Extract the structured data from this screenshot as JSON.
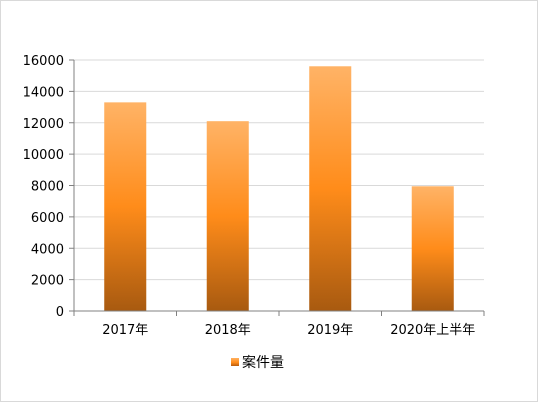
{
  "chart_data": {
    "type": "bar",
    "categories": [
      "2017年",
      "2018年",
      "2019年",
      "2020年上半年"
    ],
    "series": [
      {
        "name": "案件量",
        "values": [
          13300,
          12100,
          15600,
          7950
        ]
      }
    ],
    "ylim": [
      0,
      16000
    ],
    "y_ticks": [
      0,
      2000,
      4000,
      6000,
      8000,
      10000,
      12000,
      14000,
      16000
    ],
    "grid": true,
    "legend": "bottom-center",
    "colors": {
      "bar_top": "#ffb366",
      "bar_mid": "#ff8c1a",
      "bar_bottom": "#a85a10",
      "grid": "#d9d9d9",
      "axis": "#808080"
    }
  }
}
